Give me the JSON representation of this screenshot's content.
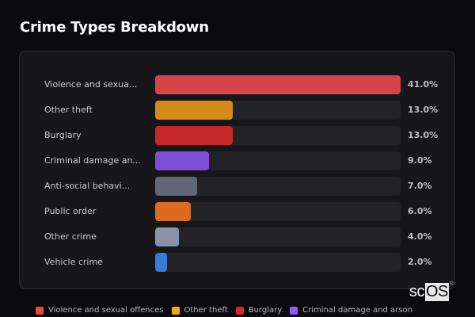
{
  "header": {
    "title": "Crime Types Breakdown"
  },
  "chart_data": {
    "type": "bar",
    "orientation": "horizontal",
    "title": "Crime Types Breakdown",
    "xlabel": "",
    "ylabel": "",
    "xlim": [
      0,
      41
    ],
    "grid": false,
    "legend_position": "bottom",
    "categories": [
      "Violence and sexual offences",
      "Other theft",
      "Burglary",
      "Criminal damage and arson",
      "Anti-social behaviour",
      "Public order",
      "Other crime",
      "Vehicle crime"
    ],
    "display_labels": [
      "Violence and sexua...",
      "Other theft",
      "Burglary",
      "Criminal damage an...",
      "Anti-social behavi...",
      "Public order",
      "Other crime",
      "Vehicle crime"
    ],
    "values": [
      41.0,
      13.0,
      13.0,
      9.0,
      7.0,
      6.0,
      4.0,
      2.0
    ],
    "value_labels": [
      "41.0%",
      "13.0%",
      "13.0%",
      "9.0%",
      "7.0%",
      "6.0%",
      "4.0%",
      "2.0%"
    ],
    "colors": [
      "#d64545",
      "#d68a17",
      "#c62828",
      "#7c4fd6",
      "#5e6678",
      "#de6a1f",
      "#8a93a5",
      "#3b7bd8"
    ],
    "legend": [
      {
        "label": "Violence and sexual offences",
        "color": "#e24848"
      },
      {
        "label": "Other theft",
        "color": "#f2a51f"
      },
      {
        "label": "Burglary",
        "color": "#d62a2a"
      },
      {
        "label": "Criminal damage and arson",
        "color": "#8b5cf6"
      }
    ]
  },
  "watermark": {
    "sc": "sc",
    "os": "OS",
    "reg": "®"
  }
}
